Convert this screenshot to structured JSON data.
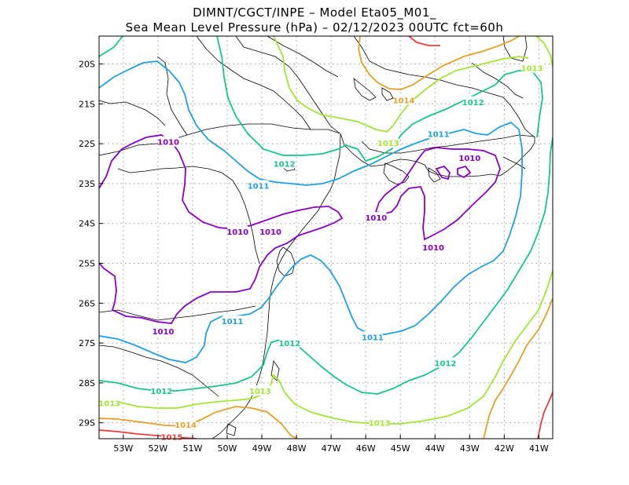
{
  "title": {
    "line1": "DIMNT/CGCT/INPE –  Model Eta05_M01_",
    "line2": "Sea Mean Level Pressure (hPa) – 02/12/2023 00UTC fct=60h"
  },
  "axes": {
    "x_ticks": [
      "53W",
      "52W",
      "51W",
      "50W",
      "49W",
      "48W",
      "47W",
      "46W",
      "45W",
      "44W",
      "43W",
      "42W",
      "41W"
    ],
    "y_ticks": [
      "20S",
      "21S",
      "22S",
      "23S",
      "24S",
      "25S",
      "26S",
      "27S",
      "28S",
      "29S"
    ]
  },
  "map_extent": {
    "lon": [
      -53.7,
      -40.6
    ],
    "lat": [
      -29.4,
      -19.3
    ]
  },
  "colors": {
    "1010": "#8a00c8",
    "1011": "#1ea0e6",
    "1012": "#14c88c",
    "1013": "#a0e632",
    "1014": "#e6a028",
    "1015": "#f03c3c",
    "coast": "#000000",
    "grid": "#999999"
  },
  "contour_labels": [
    {
      "text": "1010",
      "level": "1010",
      "lon": -51.7,
      "lat": -21.95
    },
    {
      "text": "1010",
      "level": "1010",
      "lon": -49.7,
      "lat": -24.2
    },
    {
      "text": "1010",
      "level": "1010",
      "lon": -48.75,
      "lat": -24.2
    },
    {
      "text": "1010",
      "level": "1010",
      "lon": -45.7,
      "lat": -23.85
    },
    {
      "text": "1010",
      "level": "1010",
      "lon": -43.0,
      "lat": -22.35
    },
    {
      "text": "1010",
      "level": "1010",
      "lon": -44.05,
      "lat": -24.6
    },
    {
      "text": "1010",
      "level": "1010",
      "lon": -51.85,
      "lat": -26.7
    },
    {
      "text": "1011",
      "level": "1011",
      "lon": -49.1,
      "lat": -23.05
    },
    {
      "text": "1011",
      "level": "1011",
      "lon": -43.9,
      "lat": -21.75
    },
    {
      "text": "1011",
      "level": "1011",
      "lon": -49.85,
      "lat": -26.45
    },
    {
      "text": "1011",
      "level": "1011",
      "lon": -45.8,
      "lat": -26.85
    },
    {
      "text": "1012",
      "level": "1012",
      "lon": -48.35,
      "lat": -22.5
    },
    {
      "text": "1012",
      "level": "1012",
      "lon": -42.9,
      "lat": -20.95
    },
    {
      "text": "1012",
      "level": "1012",
      "lon": -48.2,
      "lat": -27.0
    },
    {
      "text": "1012",
      "level": "1012",
      "lon": -43.7,
      "lat": -27.5
    },
    {
      "text": "1012",
      "level": "1012",
      "lon": -51.9,
      "latlabel": 0,
      "lat": -28.2
    },
    {
      "text": "1013",
      "level": "1013",
      "lon": -41.2,
      "lat": -20.1
    },
    {
      "text": "1013",
      "level": "1013",
      "lon": -45.35,
      "lat": -21.98
    },
    {
      "text": "1013",
      "level": "1013",
      "lon": -49.05,
      "lat": -28.2
    },
    {
      "text": "1013",
      "level": "1013",
      "lon": -53.4,
      "lat": -28.5
    },
    {
      "text": "1013",
      "level": "1013",
      "lon": -45.6,
      "lat": -29.0
    },
    {
      "text": "1014",
      "level": "1014",
      "lon": -44.9,
      "lat": -20.9
    },
    {
      "text": "1014",
      "level": "1014",
      "lon": -51.2,
      "lat": -29.05
    },
    {
      "text": "1015",
      "level": "1015",
      "lon": -51.6,
      "lat": -29.35
    }
  ]
}
